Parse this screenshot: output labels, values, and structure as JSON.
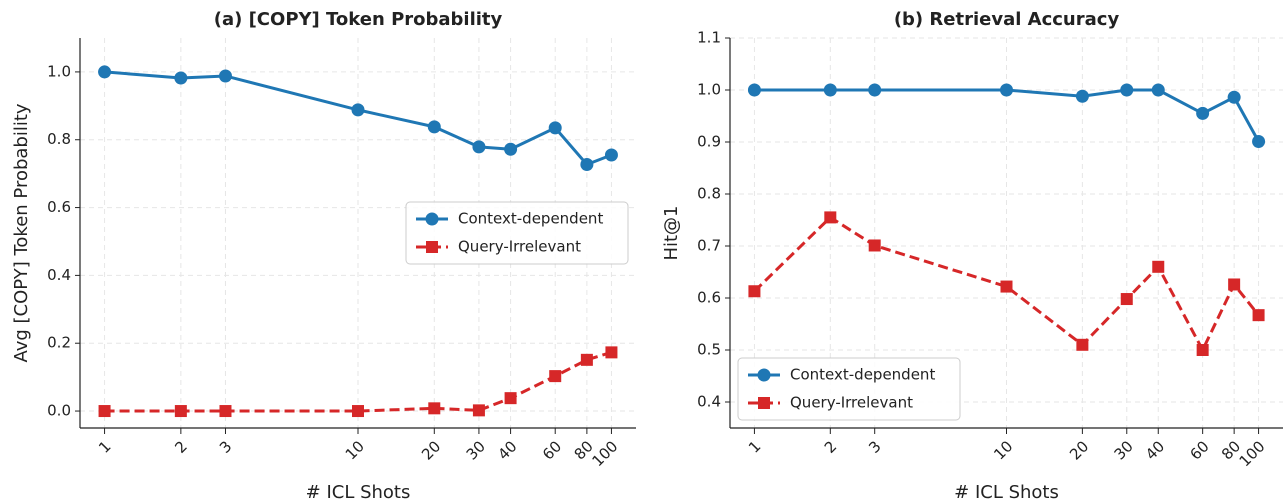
{
  "chart_data": [
    {
      "type": "line",
      "title": "(a) [COPY] Token Probability",
      "xlabel": "# ICL Shots",
      "ylabel": "Avg [COPY] Token Probability",
      "x": [
        1,
        2,
        3,
        10,
        20,
        30,
        40,
        60,
        80,
        100
      ],
      "xscale": "log",
      "xlim": [
        0.8,
        125
      ],
      "xticks": [
        1,
        2,
        3,
        10,
        20,
        30,
        40,
        60,
        80,
        100
      ],
      "ylim": [
        -0.05,
        1.1
      ],
      "yticks": [
        {
          "value": 0,
          "label": "0.0"
        },
        0.2,
        0.4,
        0.6,
        0.8,
        {
          "value": 1,
          "label": "1.0"
        }
      ],
      "grid": true,
      "legend": "center right",
      "series": [
        {
          "name": "Context-dependent",
          "color": "#1f77b4",
          "marker": "circle",
          "linestyle": "solid",
          "values": [
            1.0,
            0.982,
            0.988,
            0.888,
            0.838,
            0.779,
            0.772,
            0.835,
            0.727,
            0.755
          ]
        },
        {
          "name": "Query-Irrelevant",
          "color": "#d62728",
          "marker": "square",
          "linestyle": "dashed",
          "values": [
            0.0,
            0.0,
            0.0,
            0.0,
            0.008,
            0.002,
            0.038,
            0.103,
            0.151,
            0.173
          ]
        }
      ]
    },
    {
      "type": "line",
      "title": "(b) Retrieval Accuracy",
      "xlabel": "# ICL Shots",
      "ylabel": "Hit@1",
      "x": [
        1,
        2,
        3,
        10,
        20,
        30,
        40,
        60,
        80,
        100
      ],
      "xscale": "log",
      "xlim": [
        0.8,
        125
      ],
      "xticks": [
        1,
        2,
        3,
        10,
        20,
        30,
        40,
        60,
        80,
        100
      ],
      "ylim": [
        0.35,
        1.1
      ],
      "yticks": [
        0.4,
        0.5,
        0.6,
        0.7,
        0.8,
        0.9,
        {
          "value": 1,
          "label": "1.0"
        },
        1.1
      ],
      "grid": true,
      "legend": "lower left",
      "series": [
        {
          "name": "Context-dependent",
          "color": "#1f77b4",
          "marker": "circle",
          "linestyle": "solid",
          "values": [
            1.0,
            1.0,
            1.0,
            1.0,
            0.988,
            1.0,
            1.0,
            0.955,
            0.986,
            0.901
          ]
        },
        {
          "name": "Query-Irrelevant",
          "color": "#d62728",
          "marker": "square",
          "linestyle": "dashed",
          "values": [
            0.613,
            0.755,
            0.701,
            0.622,
            0.51,
            0.598,
            0.66,
            0.5,
            0.626,
            0.567
          ]
        }
      ]
    }
  ]
}
